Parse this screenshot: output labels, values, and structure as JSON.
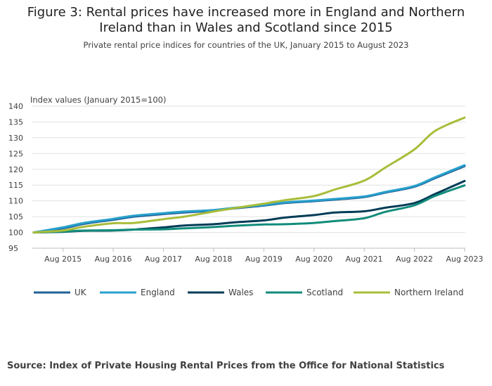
{
  "header": {
    "title_line1": "Figure 3: Rental prices have increased more in England and Northern",
    "title_line2": "Ireland than in Wales and Scotland since 2015",
    "subtitle": "Private rental price indices for countries of the UK, January 2015 to August 2023"
  },
  "footer": {
    "source": "Source: Index of Private Housing Rental Prices from the Office for National Statistics"
  },
  "chart_data": {
    "type": "line",
    "title": "Figure 3: Rental prices have increased more in England and Northern Ireland than in Wales and Scotland since 2015",
    "subtitle": "Private rental price indices for countries of the UK, January 2015 to August 2023",
    "ylabel": "Index values (January 2015=100)",
    "xlabel": "",
    "ylim": [
      95,
      140
    ],
    "yticks": [
      95,
      100,
      105,
      110,
      115,
      120,
      125,
      130,
      135,
      140
    ],
    "x_tick_labels": [
      "Aug 2015",
      "Aug 2016",
      "Aug 2017",
      "Aug 2018",
      "Aug 2019",
      "Aug 2020",
      "Aug 2021",
      "Aug 2022",
      "Aug 2023"
    ],
    "grid": true,
    "legend_position": "bottom",
    "x_points_note": "Points at January and August of each year",
    "x": [
      "Jan 2015",
      "Aug 2015",
      "Jan 2016",
      "Aug 2016",
      "Jan 2017",
      "Aug 2017",
      "Jan 2018",
      "Aug 2018",
      "Jan 2019",
      "Aug 2019",
      "Jan 2020",
      "Aug 2020",
      "Jan 2021",
      "Aug 2021",
      "Jan 2022",
      "Aug 2022",
      "Jan 2023",
      "Aug 2023"
    ],
    "series": [
      {
        "name": "UK",
        "color": "#206095",
        "values": [
          100,
          101.3,
          102.7,
          104.0,
          105.0,
          105.8,
          106.3,
          106.9,
          107.6,
          108.5,
          109.3,
          109.9,
          110.4,
          111.2,
          112.6,
          114.5,
          117.2,
          121.0
        ]
      },
      {
        "name": "England",
        "color": "#27A0CC",
        "values": [
          100,
          101.6,
          103.0,
          104.3,
          105.3,
          106.1,
          106.6,
          107.1,
          107.8,
          108.7,
          109.5,
          110.1,
          110.6,
          111.4,
          112.8,
          114.7,
          117.5,
          121.3
        ]
      },
      {
        "name": "Wales",
        "color": "#003C57",
        "values": [
          100,
          100.2,
          100.5,
          100.6,
          100.9,
          101.6,
          102.2,
          102.6,
          103.2,
          103.8,
          104.7,
          105.5,
          106.3,
          106.7,
          107.8,
          109.3,
          112.2,
          116.3
        ]
      },
      {
        "name": "Scotland",
        "color": "#118C7B",
        "values": [
          100,
          100.3,
          100.6,
          100.7,
          100.9,
          101.0,
          101.3,
          101.7,
          102.1,
          102.5,
          102.6,
          103.0,
          103.6,
          104.5,
          106.5,
          108.6,
          111.6,
          114.9
        ]
      },
      {
        "name": "Northern Ireland",
        "color": "#A8BD3A",
        "values": [
          100,
          100.6,
          101.8,
          102.9,
          103.0,
          104.2,
          105.0,
          106.6,
          107.7,
          109.1,
          110.2,
          111.5,
          113.6,
          116.4,
          120.5,
          126.3,
          132.2,
          136.4
        ]
      }
    ]
  }
}
